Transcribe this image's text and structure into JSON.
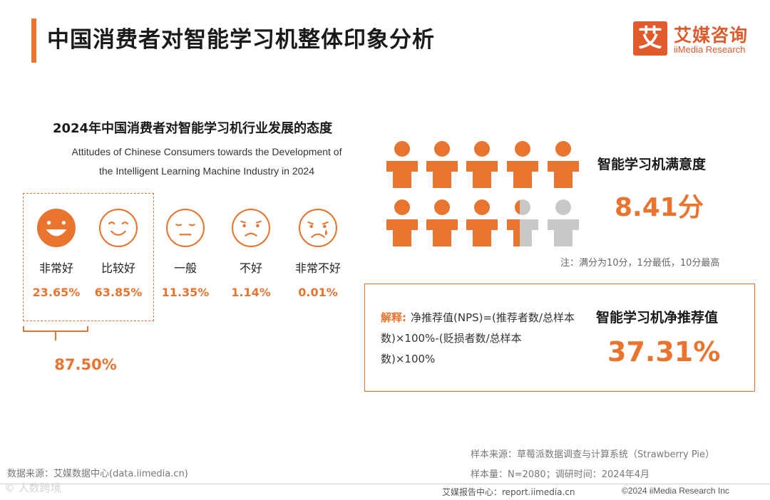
{
  "header": {
    "title": "中国消费者对智能学习机整体印象分析"
  },
  "logo": {
    "mark": "艾",
    "name_cn": "艾媒咨询",
    "name_en": "iiMedia Research"
  },
  "colors": {
    "accent": "#e8742f",
    "brand": "#e05a2b",
    "neutral_person": "#c8c8c8"
  },
  "chart_data": [
    {
      "type": "table",
      "title": "2024年中国消费者对智能学习机行业发展的态度",
      "subtitle_en": [
        "Attitudes of Chinese Consumers towards the Development of",
        "the Intelligent Learning Machine Industry in 2024"
      ],
      "categories": [
        "非常好",
        "比较好",
        "一般",
        "不好",
        "非常不好"
      ],
      "values_text": [
        "23.65%",
        "63.85%",
        "11.35%",
        "1.14%",
        "0.01%"
      ],
      "values": [
        23.65,
        63.85,
        11.35,
        1.14,
        0.01
      ],
      "icons": [
        "laughing-face-icon",
        "smiling-face-icon",
        "neutral-face-icon",
        "frowning-face-icon",
        "crying-face-icon"
      ],
      "combined_positive": {
        "categories": [
          "非常好",
          "比较好"
        ],
        "value": 87.5,
        "label": "87.50%"
      }
    },
    {
      "type": "pictogram",
      "title": "智能学习机满意度",
      "score": 8.41,
      "max_score": 10,
      "icons_total": 10,
      "value_label": "8.41分",
      "note": "注：满分为10分，1分最低，10分最高"
    }
  ],
  "nps": {
    "keyword": "解释:",
    "explanation": "净推荐值(NPS)=(推荐者数/总样本数)×100%-(贬损者数/总样本数)×100%",
    "title": "智能学习机净推荐值",
    "value_label": "37.31%"
  },
  "footer": {
    "data_source": "数据来源：艾媒数据中心(data.iimedia.cn)",
    "sample_source": "样本来源：草莓派数据调查与计算系统（Strawberry Pie）",
    "sample_size": "样本量：N=2080；调研时间：2024年4月",
    "report_center": "艾媒报告中心：report.iimedia.cn",
    "copyright": "©2024  iiMedia Research  Inc",
    "watermark": "©  人数跨境"
  }
}
